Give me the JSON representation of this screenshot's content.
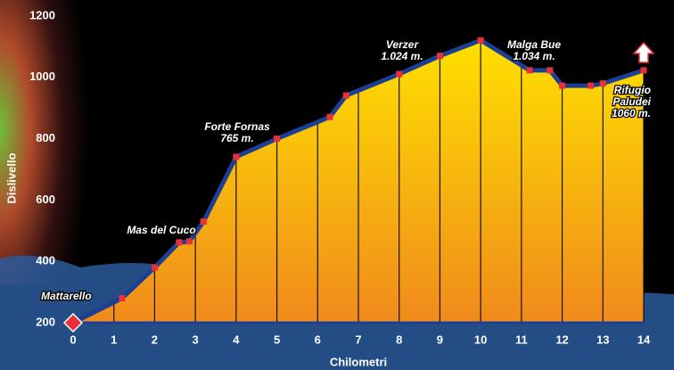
{
  "chart_data": {
    "type": "area",
    "xlabel": "Chilometri",
    "ylabel": "Dislivello",
    "x": [
      0,
      1.2,
      2,
      2.6,
      2.85,
      3.2,
      4,
      5,
      6.3,
      6.7,
      8,
      9,
      10,
      11.2,
      11.7,
      12,
      12.7,
      13,
      14
    ],
    "values": [
      200,
      280,
      380,
      462,
      465,
      530,
      741,
      800,
      871,
      941,
      1011,
      1070,
      1121,
      1023,
      1023,
      973,
      973,
      980,
      1023
    ],
    "line_color": "#1c3f94",
    "marker_color": "#e8303a",
    "xlim": [
      0,
      14
    ],
    "xticks": [
      0,
      1,
      2,
      3,
      4,
      5,
      6,
      7,
      8,
      9,
      10,
      11,
      12,
      13,
      14
    ],
    "ylim": [
      200,
      1200
    ],
    "yticks": [
      200,
      400,
      600,
      800,
      1000,
      1200
    ],
    "annotations": [
      {
        "lines": [
          "Mattarello"
        ]
      },
      {
        "lines": [
          "Mas del Cuco"
        ]
      },
      {
        "lines": [
          "Forte Fornas",
          "765 m."
        ]
      },
      {
        "lines": [
          "Verzer",
          "1.024 m."
        ]
      },
      {
        "lines": [
          "Malga Bue",
          "1.034 m."
        ]
      },
      {
        "lines": [
          "Rifugio",
          "Paludei",
          "1060 m."
        ]
      }
    ]
  }
}
